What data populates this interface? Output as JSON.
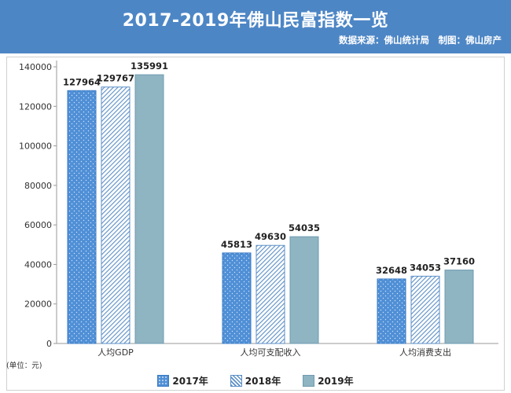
{
  "header": {
    "title": "2017-2019年佛山民富指数一览",
    "source": "数据来源：佛山统计局　制图：佛山房产"
  },
  "unit_label": "(单位：元)",
  "colors": {
    "header_bg": "#4d86c5",
    "s2017": "#4f8fd6",
    "s2018": "#5b8fc7",
    "s2019": "#8fb4c2"
  },
  "chart_data": {
    "type": "bar",
    "title": "2017-2019年佛山民富指数一览",
    "categories": [
      "人均GDP",
      "人均可支配收入",
      "人均消费支出"
    ],
    "series": [
      {
        "name": "2017年",
        "values": [
          127964,
          45813,
          32648
        ],
        "color": "#4f8fd6",
        "pattern": "dots"
      },
      {
        "name": "2018年",
        "values": [
          129767,
          49630,
          34053
        ],
        "color": "#5b8fc7",
        "pattern": "hatch"
      },
      {
        "name": "2019年",
        "values": [
          135991,
          54035,
          37160
        ],
        "color": "#8fb4c2",
        "pattern": "solid"
      }
    ],
    "ylim": [
      0,
      140000
    ],
    "yticks": [
      0,
      20000,
      40000,
      60000,
      80000,
      100000,
      120000,
      140000
    ],
    "grid": false,
    "legend": "bottom"
  }
}
